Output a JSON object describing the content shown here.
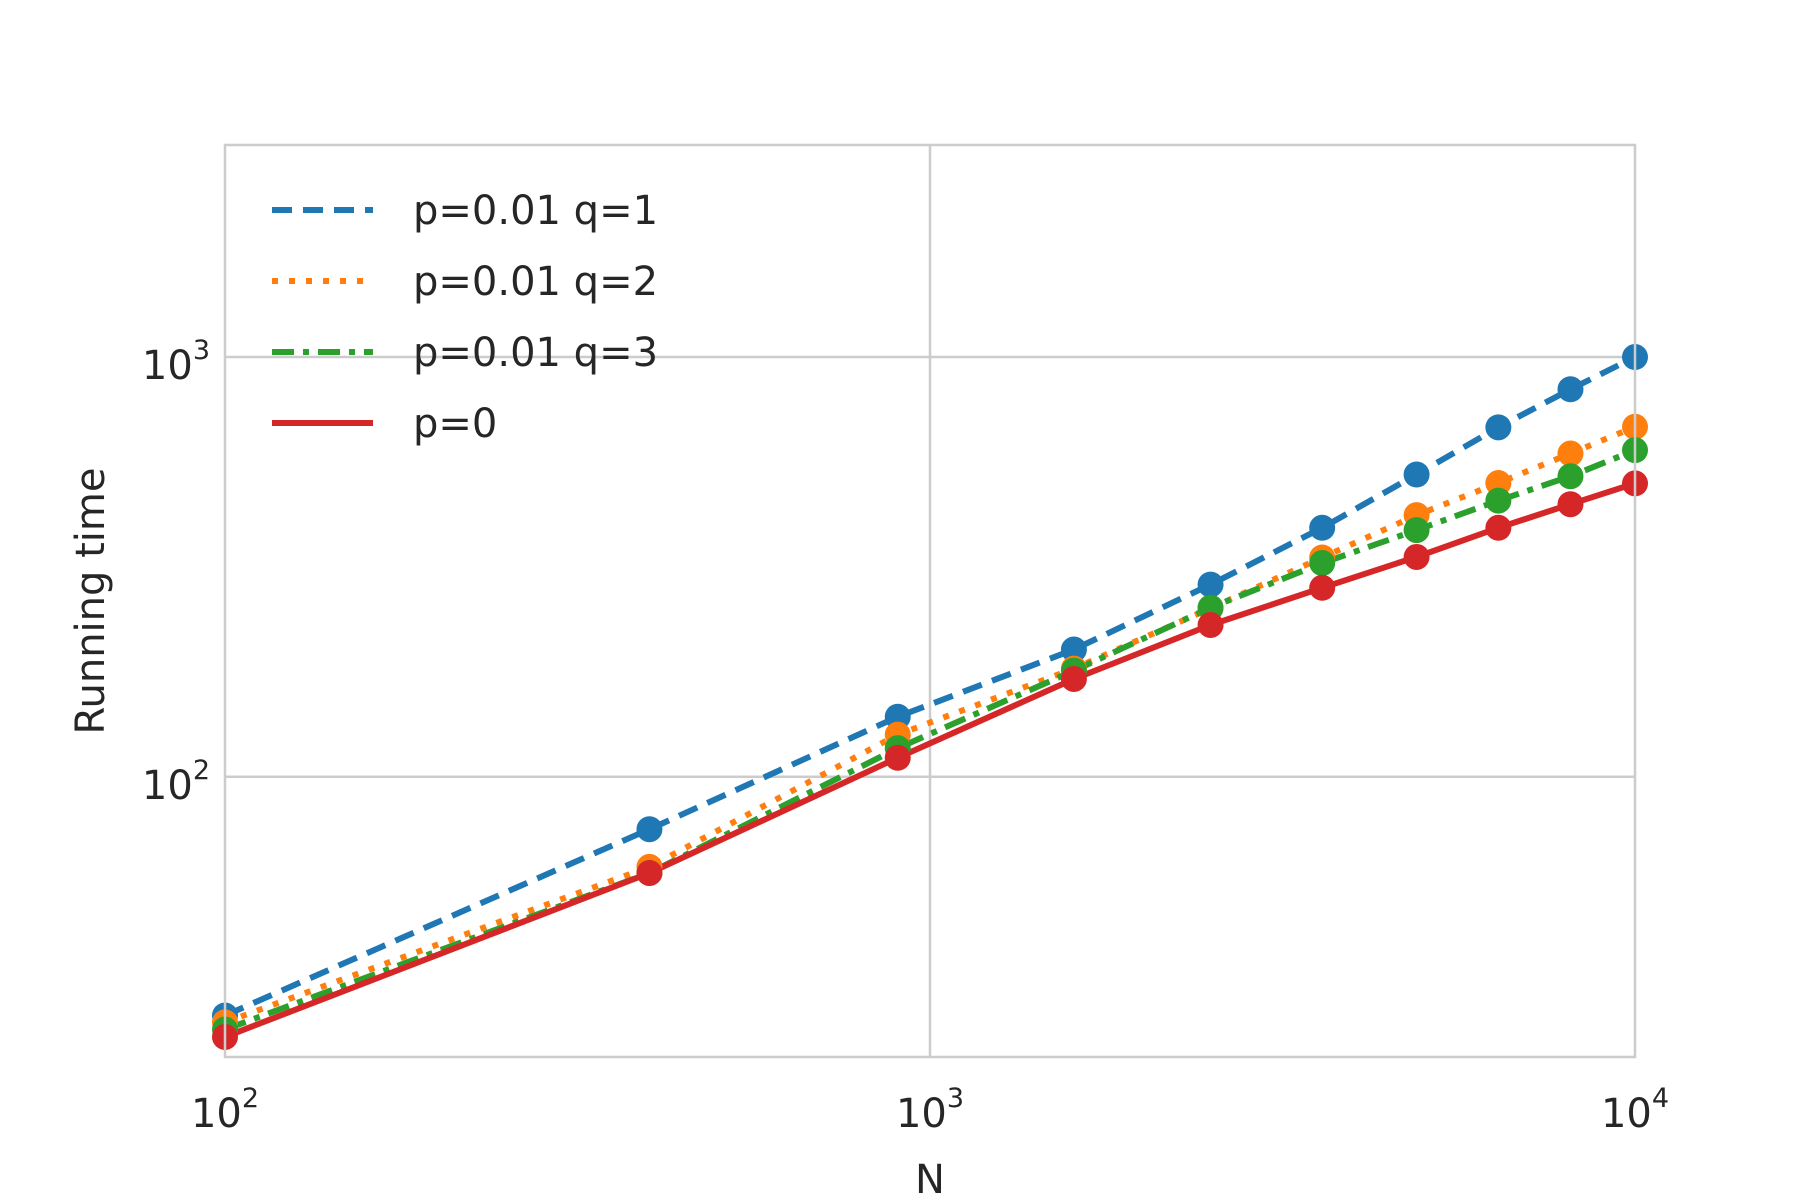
{
  "chart_data": {
    "type": "line",
    "xlabel": "N",
    "ylabel": "Running time",
    "x_scale": "log",
    "y_scale": "log",
    "xlim": [
      100,
      10000
    ],
    "ylim": [
      21.5,
      3200
    ],
    "grid": true,
    "legend_position": "top-left",
    "x_ticks": [
      {
        "base": "10",
        "exp": "2",
        "value": 100
      },
      {
        "base": "10",
        "exp": "3",
        "value": 1000
      },
      {
        "base": "10",
        "exp": "4",
        "value": 10000
      }
    ],
    "y_ticks": [
      {
        "base": "10",
        "exp": "2",
        "value": 100
      },
      {
        "base": "10",
        "exp": "3",
        "value": 1000
      }
    ],
    "x": [
      100,
      400,
      900,
      1600,
      2500,
      3600,
      4900,
      6400,
      8100,
      10000
    ],
    "series": [
      {
        "name": "p=0.01 q=1",
        "color": "#1f77b4",
        "style": "dashed",
        "values": [
          27,
          75,
          139,
          201,
          287,
          392,
          525,
          680,
          838,
          1000
        ]
      },
      {
        "name": "p=0.01 q=2",
        "color": "#ff7f0e",
        "style": "dotted",
        "values": [
          26,
          61,
          126,
          181,
          252,
          333,
          420,
          501,
          589,
          682
        ]
      },
      {
        "name": "p=0.01 q=3",
        "color": "#2ca02c",
        "style": "dashdot",
        "values": [
          25,
          59,
          117,
          179,
          253,
          323,
          387,
          455,
          520,
          600
        ]
      },
      {
        "name": "p=0",
        "color": "#d62728",
        "style": "solid",
        "values": [
          24,
          59,
          111,
          171,
          230,
          282,
          334,
          392,
          446,
          500
        ]
      }
    ]
  }
}
